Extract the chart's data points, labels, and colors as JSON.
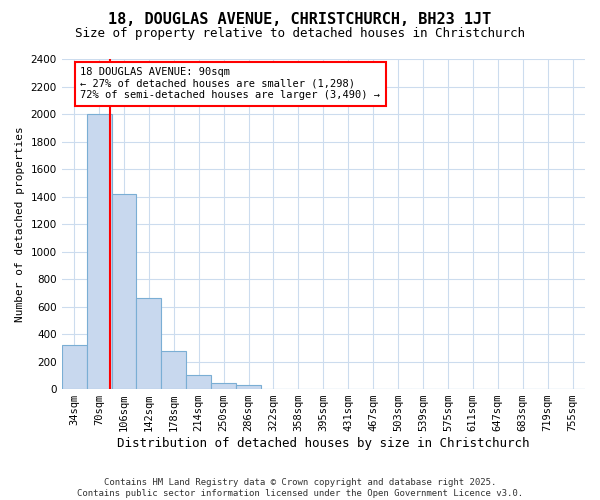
{
  "title1": "18, DOUGLAS AVENUE, CHRISTCHURCH, BH23 1JT",
  "title2": "Size of property relative to detached houses in Christchurch",
  "xlabel": "Distribution of detached houses by size in Christchurch",
  "ylabel": "Number of detached properties",
  "categories": [
    "34sqm",
    "70sqm",
    "106sqm",
    "142sqm",
    "178sqm",
    "214sqm",
    "250sqm",
    "286sqm",
    "322sqm",
    "358sqm",
    "395sqm",
    "431sqm",
    "467sqm",
    "503sqm",
    "539sqm",
    "575sqm",
    "611sqm",
    "647sqm",
    "683sqm",
    "719sqm",
    "755sqm"
  ],
  "values": [
    320,
    2000,
    1420,
    660,
    280,
    100,
    45,
    30,
    0,
    0,
    0,
    0,
    0,
    0,
    0,
    0,
    0,
    0,
    0,
    0,
    0
  ],
  "bar_color": "#c8d8ee",
  "bar_edgecolor": "#7aaed4",
  "bar_linewidth": 0.8,
  "annotation_text": "18 DOUGLAS AVENUE: 90sqm\n← 27% of detached houses are smaller (1,298)\n72% of semi-detached houses are larger (3,490) →",
  "annotation_box_edgecolor": "red",
  "property_line_color": "red",
  "property_line_xindex": 1.45,
  "ylim": [
    0,
    2400
  ],
  "yticks": [
    0,
    200,
    400,
    600,
    800,
    1000,
    1200,
    1400,
    1600,
    1800,
    2000,
    2200,
    2400
  ],
  "footer": "Contains HM Land Registry data © Crown copyright and database right 2025.\nContains public sector information licensed under the Open Government Licence v3.0.",
  "background_color": "#ffffff",
  "grid_color": "#ccdcee",
  "title1_fontsize": 11,
  "title2_fontsize": 9,
  "xlabel_fontsize": 9,
  "ylabel_fontsize": 8,
  "tick_fontsize": 7.5,
  "footer_fontsize": 6.5
}
